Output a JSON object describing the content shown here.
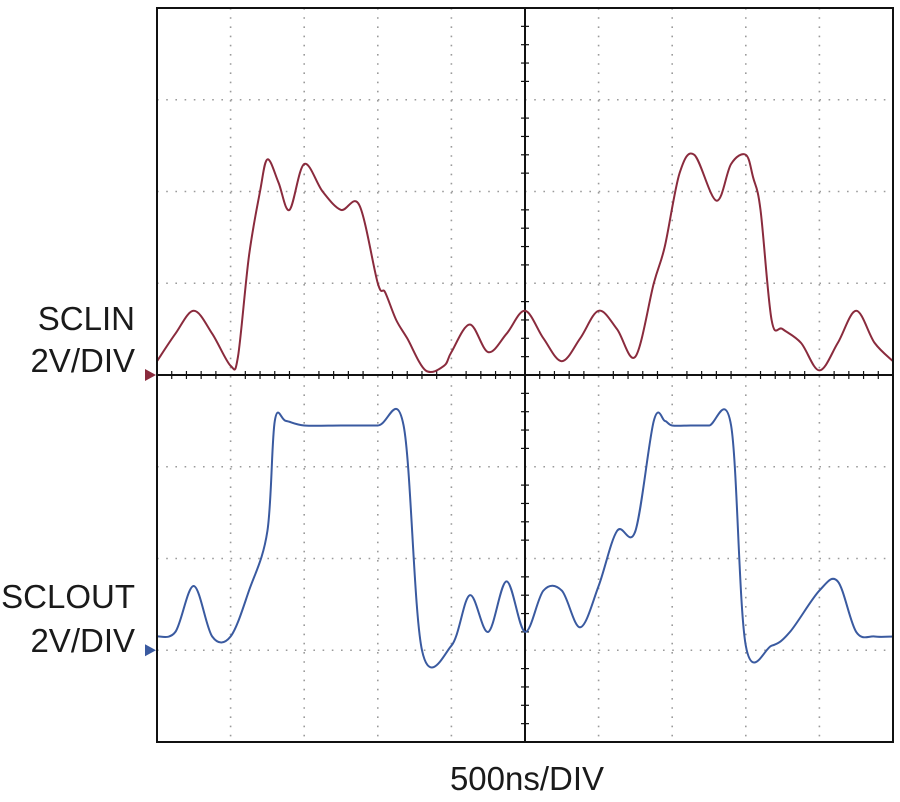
{
  "chart_data": {
    "type": "line",
    "title": "",
    "xlabel": "500ns/DIV",
    "grid": true,
    "divisions": {
      "horizontal": 10,
      "vertical": 8
    },
    "xlim": [
      0,
      10
    ],
    "ylim": [
      0,
      8
    ],
    "x_unit": "div",
    "y_unit": "div",
    "channels": [
      {
        "label": "SCLIN",
        "scale": "2V/DIV",
        "color": "#8a2b3d",
        "ground_marker_div": 4.0
      },
      {
        "label": "SCLOUT",
        "scale": "2V/DIV",
        "color": "#3a5aa0",
        "ground_marker_div": 1.0
      }
    ],
    "series": [
      {
        "name": "SCLIN",
        "x": [
          0,
          0.25,
          0.5,
          0.75,
          1.0,
          1.1,
          1.25,
          1.4,
          1.5,
          1.65,
          1.8,
          2.0,
          2.25,
          2.5,
          2.75,
          3.0,
          3.1,
          3.25,
          3.4,
          3.65,
          3.9,
          4.0,
          4.25,
          4.5,
          4.75,
          5.0,
          5.25,
          5.5,
          5.75,
          6.0,
          6.25,
          6.5,
          6.75,
          6.9,
          7.1,
          7.3,
          7.6,
          7.8,
          8.0,
          8.1,
          8.2,
          8.35,
          8.5,
          8.75,
          9.0,
          9.25,
          9.5,
          9.75,
          10.0
        ],
        "y": [
          4.15,
          4.45,
          4.7,
          4.45,
          4.1,
          4.2,
          5.3,
          6.0,
          6.35,
          6.1,
          5.8,
          6.3,
          6.0,
          5.8,
          5.85,
          5.0,
          4.9,
          4.6,
          4.4,
          4.05,
          4.1,
          4.25,
          4.55,
          4.25,
          4.45,
          4.7,
          4.4,
          4.15,
          4.4,
          4.7,
          4.5,
          4.2,
          5.0,
          5.4,
          6.2,
          6.4,
          5.9,
          6.3,
          6.4,
          6.15,
          5.8,
          4.6,
          4.5,
          4.35,
          4.05,
          4.35,
          4.7,
          4.35,
          4.15
        ]
      },
      {
        "name": "SCLOUT",
        "x": [
          0,
          0.25,
          0.5,
          0.75,
          1.0,
          1.25,
          1.5,
          1.6,
          1.75,
          2.0,
          2.5,
          3.0,
          3.35,
          3.6,
          4.0,
          4.25,
          4.5,
          4.75,
          5.0,
          5.25,
          5.5,
          5.75,
          6.0,
          6.25,
          6.5,
          6.75,
          6.9,
          7.0,
          7.25,
          7.5,
          7.8,
          8.0,
          8.35,
          8.6,
          9.0,
          9.25,
          9.5,
          9.75,
          10.0
        ],
        "y": [
          1.15,
          1.2,
          1.7,
          1.15,
          1.15,
          1.65,
          2.3,
          3.5,
          3.5,
          3.45,
          3.45,
          3.45,
          3.45,
          1.0,
          1.05,
          1.6,
          1.2,
          1.75,
          1.2,
          1.65,
          1.65,
          1.25,
          1.7,
          2.3,
          2.3,
          3.5,
          3.5,
          3.45,
          3.45,
          3.45,
          3.45,
          1.05,
          1.05,
          1.2,
          1.65,
          1.75,
          1.2,
          1.15,
          1.15
        ]
      }
    ]
  }
}
